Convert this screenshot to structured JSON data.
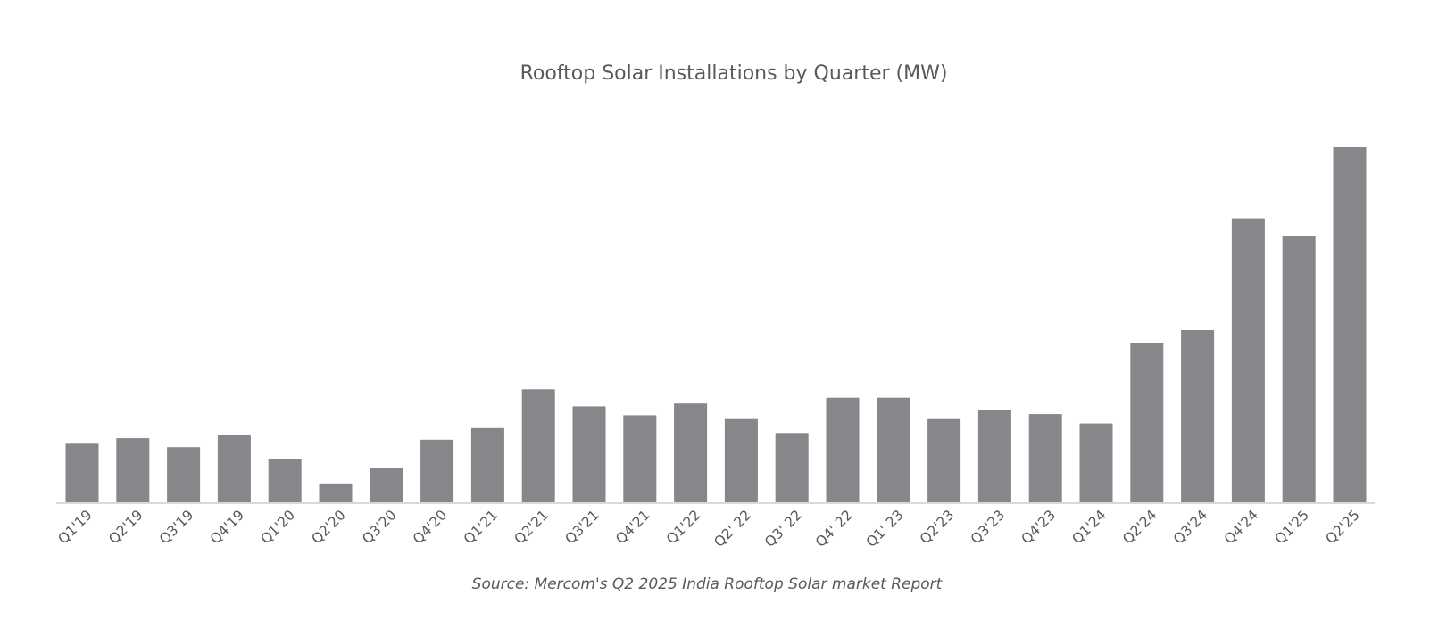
{
  "chart_data": {
    "type": "bar",
    "title": "Rooftop Solar Installations by Quarter (MW)",
    "categories": [
      "Q1'19",
      "Q2'19",
      "Q3'19",
      "Q4'19",
      "Q1'20",
      "Q2'20",
      "Q3'20",
      "Q4'20",
      "Q1'21",
      "Q2'21",
      "Q3'21",
      "Q4'21",
      "Q1'22",
      "Q2' 22",
      "Q3' 22",
      "Q4' 22",
      "Q1' 23",
      "Q2'23",
      "Q3'23",
      "Q4'23",
      "Q1'24",
      "Q2'24",
      "Q3'24",
      "Q4'24",
      "Q1'25",
      "Q2'25"
    ],
    "values": [
      307,
      336,
      289,
      353,
      226,
      99,
      180,
      328,
      389,
      592,
      503,
      456,
      518,
      436,
      363,
      548,
      548,
      436,
      484,
      462,
      413,
      836,
      902,
      1488,
      1394,
      1860
    ],
    "ylim": [
      0,
      1860
    ],
    "xlabel": "",
    "ylabel": "",
    "grid": false,
    "legend": "none",
    "bar_color": "#87878b",
    "axis_color": "#d9d9d9",
    "text_color": "#595959",
    "source": "Source: Mercom's Q2 2025  India Rooftop Solar market Report"
  }
}
